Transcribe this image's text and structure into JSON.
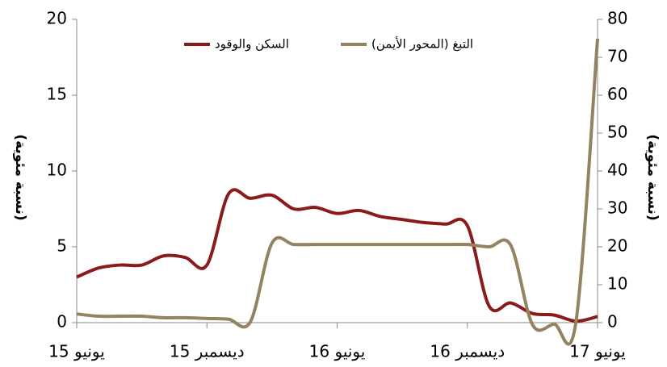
{
  "chart_data": {
    "type": "line",
    "y_label": "(نسبة مئوية)",
    "y2_label": "(نسبة مئوية)",
    "categories": [
      "يونيو 15",
      null,
      null,
      null,
      null,
      null,
      "ديسمبر 15",
      null,
      null,
      null,
      null,
      null,
      "يونيو 16",
      null,
      null,
      null,
      null,
      null,
      "ديسمبر 16",
      null,
      null,
      null,
      null,
      null,
      "يونيو 17"
    ],
    "series": [
      {
        "name": "السكن والوقود",
        "color": "#8b1a1a",
        "values": [
          3.0,
          3.6,
          3.8,
          3.8,
          4.4,
          4.3,
          3.8,
          8.5,
          8.2,
          8.4,
          7.5,
          7.6,
          7.2,
          7.4,
          7.0,
          6.8,
          6.6,
          6.5,
          6.4,
          1.1,
          1.3,
          0.6,
          0.5,
          0.1,
          0.4
        ]
      },
      {
        "name": "التبغ (المحور الأيمن)",
        "color": "#948260",
        "axis": "y2",
        "values": [
          2.3,
          1.7,
          1.7,
          1.7,
          1.3,
          1.3,
          1.1,
          0.9,
          0.2,
          21,
          20.6,
          20.6,
          20.6,
          20.6,
          20.6,
          20.6,
          20.6,
          20.6,
          20.6,
          20,
          20.4,
          -0.5,
          -0.4,
          0,
          74.9
        ]
      }
    ],
    "ylim": [
      0,
      20
    ],
    "yticks": [
      0,
      5,
      10,
      15,
      20
    ],
    "y2lim": [
      0,
      80
    ],
    "y2ticks": [
      0,
      10,
      20,
      30,
      40,
      50,
      60,
      70,
      80
    ]
  }
}
